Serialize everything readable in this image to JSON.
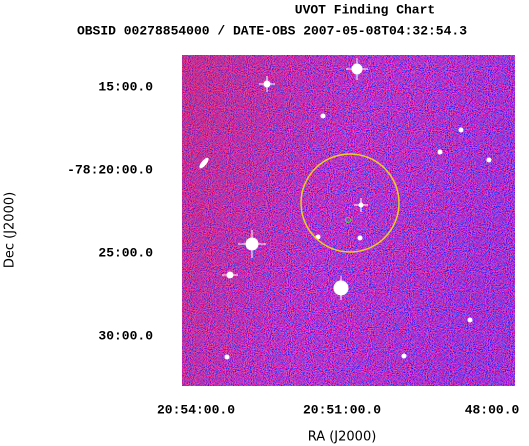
{
  "header": {
    "title": "UVOT Finding Chart",
    "subtitle": "OBSID 00278854000 / DATE-OBS 2007-05-08T04:32:54.3"
  },
  "x_axis": {
    "label": "RA (J2000)",
    "ticks": [
      "20:54:00.0",
      "20:51:00.0",
      "48:00.0"
    ]
  },
  "y_axis": {
    "label": "Dec (J2000)",
    "ticks": [
      "15:00.0",
      "-78:20:00.0",
      "25:00.0",
      "30:00.0"
    ]
  }
}
